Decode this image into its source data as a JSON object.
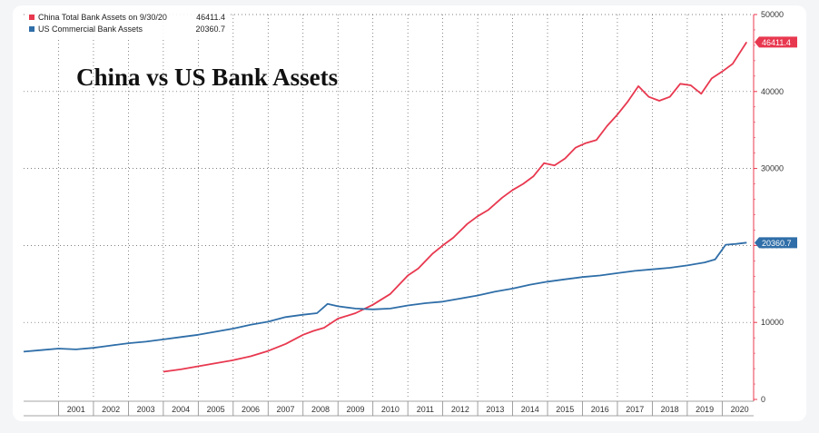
{
  "chart_data": {
    "type": "line",
    "title": "China vs US Bank Assets",
    "x_categories": [
      "2001",
      "2002",
      "2003",
      "2004",
      "2005",
      "2006",
      "2007",
      "2008",
      "2009",
      "2010",
      "2011",
      "2012",
      "2013",
      "2014",
      "2015",
      "2016",
      "2017",
      "2018",
      "2019",
      "2020"
    ],
    "ylim": [
      0,
      50000
    ],
    "y_ticks": [
      0,
      10000,
      20000,
      30000,
      40000,
      50000
    ],
    "y_tick_labels": [
      "0",
      "10000",
      "20000",
      "30000",
      "40000",
      "50000"
    ],
    "grid": true,
    "axis_side": "right",
    "legend_position": "top-left",
    "series": [
      {
        "name": "China Total Bank Assets on 9/30/20",
        "legend_value": "46411.4",
        "last_value_label": "46411.4",
        "color": "#e8384f",
        "points": [
          [
            2004.0,
            3600
          ],
          [
            2004.5,
            3900
          ],
          [
            2005.0,
            4300
          ],
          [
            2005.5,
            4700
          ],
          [
            2006.0,
            5100
          ],
          [
            2006.5,
            5600
          ],
          [
            2007.0,
            6300
          ],
          [
            2007.5,
            7200
          ],
          [
            2008.0,
            8400
          ],
          [
            2008.3,
            8900
          ],
          [
            2008.6,
            9300
          ],
          [
            2009.0,
            10500
          ],
          [
            2009.5,
            11200
          ],
          [
            2010.0,
            12300
          ],
          [
            2010.5,
            13700
          ],
          [
            2011.0,
            16100
          ],
          [
            2011.3,
            17000
          ],
          [
            2011.7,
            18900
          ],
          [
            2012.0,
            20000
          ],
          [
            2012.3,
            21000
          ],
          [
            2012.7,
            22800
          ],
          [
            2013.0,
            23800
          ],
          [
            2013.3,
            24600
          ],
          [
            2013.7,
            26200
          ],
          [
            2014.0,
            27200
          ],
          [
            2014.3,
            28000
          ],
          [
            2014.6,
            29000
          ],
          [
            2014.9,
            30700
          ],
          [
            2015.2,
            30400
          ],
          [
            2015.5,
            31300
          ],
          [
            2015.8,
            32700
          ],
          [
            2016.1,
            33300
          ],
          [
            2016.4,
            33700
          ],
          [
            2016.7,
            35500
          ],
          [
            2017.0,
            37000
          ],
          [
            2017.3,
            38700
          ],
          [
            2017.6,
            40700
          ],
          [
            2017.9,
            39300
          ],
          [
            2018.2,
            38800
          ],
          [
            2018.5,
            39300
          ],
          [
            2018.8,
            41000
          ],
          [
            2019.1,
            40800
          ],
          [
            2019.4,
            39700
          ],
          [
            2019.7,
            41700
          ],
          [
            2020.0,
            42600
          ],
          [
            2020.3,
            43600
          ],
          [
            2020.7,
            46411.4
          ]
        ]
      },
      {
        "name": "US Commercial Bank Assets",
        "legend_value": "20360.7",
        "last_value_label": "20360.7",
        "color": "#2f6ea8",
        "points": [
          [
            2000.0,
            6200
          ],
          [
            2000.5,
            6400
          ],
          [
            2001.0,
            6600
          ],
          [
            2001.5,
            6500
          ],
          [
            2002.0,
            6700
          ],
          [
            2002.5,
            7000
          ],
          [
            2003.0,
            7300
          ],
          [
            2003.5,
            7500
          ],
          [
            2004.0,
            7800
          ],
          [
            2004.5,
            8100
          ],
          [
            2005.0,
            8400
          ],
          [
            2005.5,
            8800
          ],
          [
            2006.0,
            9200
          ],
          [
            2006.5,
            9700
          ],
          [
            2007.0,
            10100
          ],
          [
            2007.5,
            10700
          ],
          [
            2008.0,
            11000
          ],
          [
            2008.4,
            11200
          ],
          [
            2008.7,
            12400
          ],
          [
            2009.0,
            12100
          ],
          [
            2009.5,
            11800
          ],
          [
            2010.0,
            11700
          ],
          [
            2010.5,
            11800
          ],
          [
            2011.0,
            12200
          ],
          [
            2011.5,
            12500
          ],
          [
            2012.0,
            12700
          ],
          [
            2012.5,
            13100
          ],
          [
            2013.0,
            13500
          ],
          [
            2013.5,
            14000
          ],
          [
            2014.0,
            14400
          ],
          [
            2014.5,
            14900
          ],
          [
            2015.0,
            15300
          ],
          [
            2015.5,
            15600
          ],
          [
            2016.0,
            15900
          ],
          [
            2016.5,
            16100
          ],
          [
            2017.0,
            16400
          ],
          [
            2017.5,
            16700
          ],
          [
            2018.0,
            16900
          ],
          [
            2018.5,
            17100
          ],
          [
            2019.0,
            17400
          ],
          [
            2019.5,
            17800
          ],
          [
            2019.8,
            18200
          ],
          [
            2020.1,
            20100
          ],
          [
            2020.4,
            20200
          ],
          [
            2020.7,
            20360.7
          ]
        ]
      }
    ]
  }
}
